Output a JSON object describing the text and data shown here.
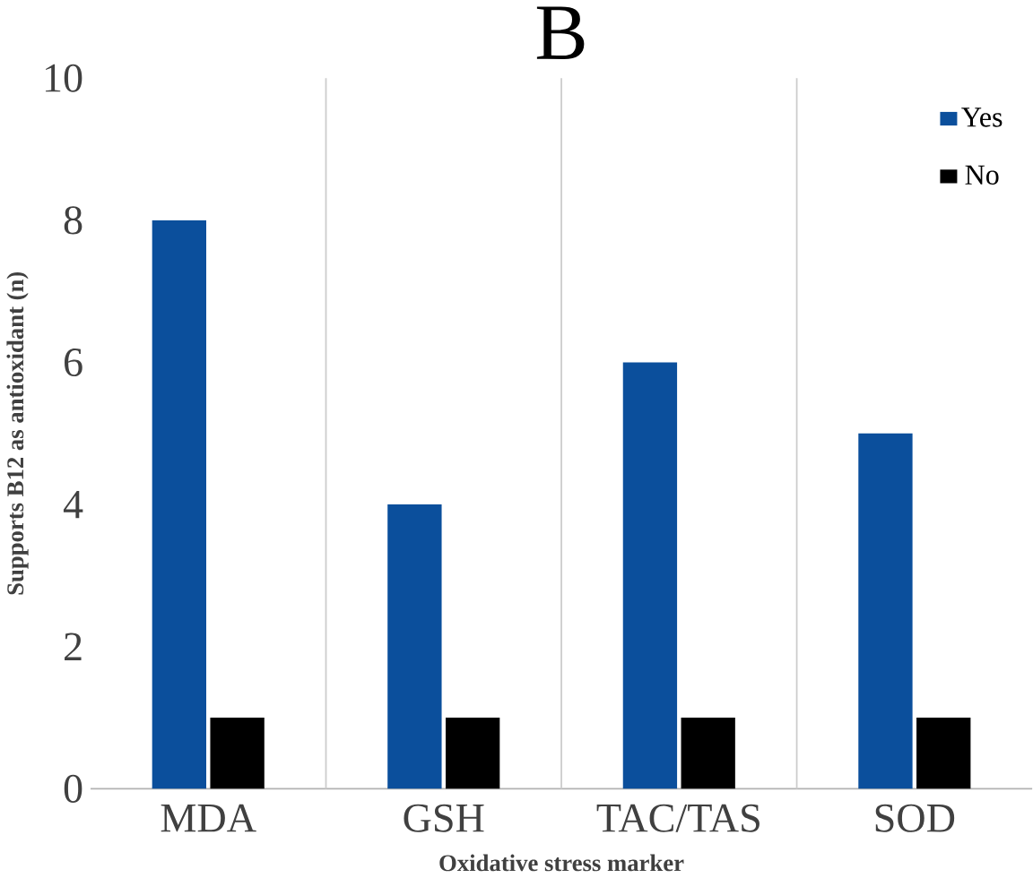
{
  "chart_data": {
    "type": "bar",
    "title": "B",
    "xlabel": "Oxidative stress marker",
    "ylabel": "Supports B12 as antioxidant (n)",
    "categories": [
      "MDA",
      "GSH",
      "TAC/TAS",
      "SOD"
    ],
    "series": [
      {
        "name": "Yes",
        "color": "#0b4f9c",
        "values": [
          8,
          4,
          6,
          5
        ]
      },
      {
        "name": "No",
        "color": "#000000",
        "values": [
          1,
          1,
          1,
          1
        ]
      }
    ],
    "ylim": [
      0,
      10
    ],
    "yticks": [
      0,
      2,
      4,
      6,
      8,
      10
    ],
    "grid": "x",
    "legend": "top right"
  }
}
